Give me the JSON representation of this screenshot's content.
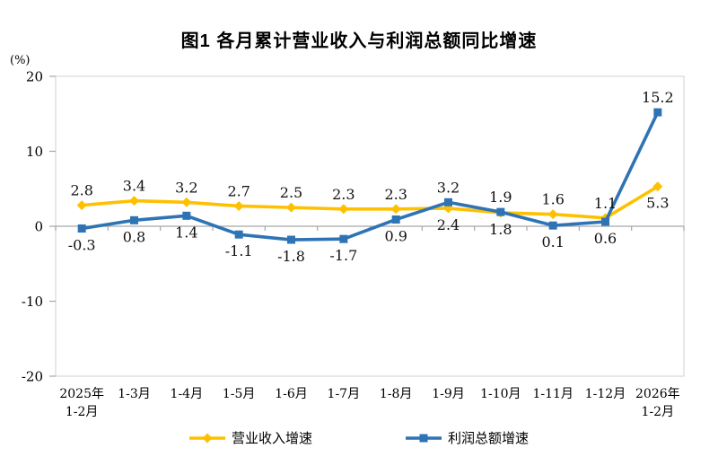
{
  "chart_data": {
    "type": "line",
    "title": "图1  各月累计营业收入与利润总额同比增速",
    "ylabel": "(%)",
    "ylim": [
      -20,
      20
    ],
    "yticks": [
      20,
      10,
      0,
      -10,
      -20
    ],
    "grid": false,
    "legend_position": "bottom",
    "categories": [
      "2025年\n1-2月",
      "1-3月",
      "1-4月",
      "1-5月",
      "1-6月",
      "1-7月",
      "1-8月",
      "1-9月",
      "1-10月",
      "1-11月",
      "1-12月",
      "2026年\n1-2月"
    ],
    "series": [
      {
        "id": "revenue",
        "name": "营业收入增速",
        "marker": "diamond",
        "color": "#FFC000",
        "values": [
          2.8,
          3.4,
          3.2,
          2.7,
          2.5,
          2.3,
          2.3,
          2.4,
          1.8,
          1.6,
          1.1,
          5.3
        ]
      },
      {
        "id": "profit",
        "name": "利润总额增速",
        "marker": "square",
        "color": "#2E74B5",
        "values": [
          -0.3,
          0.8,
          1.4,
          -1.1,
          -1.8,
          -1.7,
          0.9,
          3.2,
          1.9,
          0.1,
          0.6,
          15.2
        ]
      }
    ],
    "colors": {
      "border": "#D9D9D9",
      "axis": "#A6A6A6",
      "text": "#000000"
    }
  }
}
